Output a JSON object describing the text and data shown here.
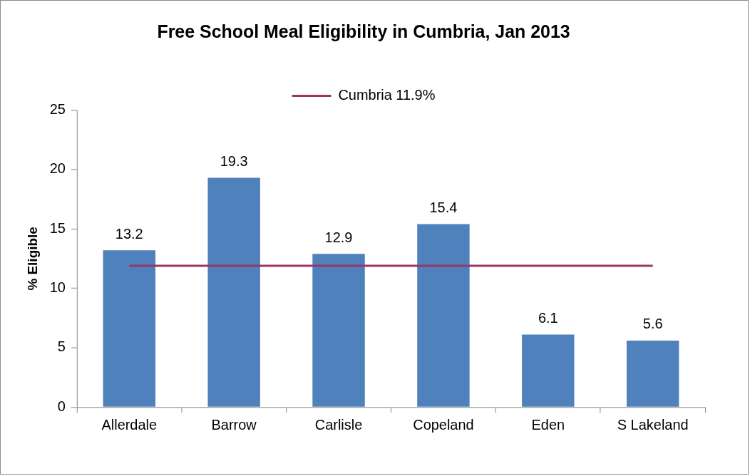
{
  "chart_data": {
    "type": "bar",
    "title": "Free School Meal Eligibility in Cumbria, Jan 2013",
    "ylabel": "% Eligible",
    "categories": [
      "Allerdale",
      "Barrow",
      "Carlisle",
      "Copeland",
      "Eden",
      "S Lakeland"
    ],
    "series": [
      {
        "color": "#4f81bd",
        "values": [
          13.2,
          19.3,
          12.9,
          15.4,
          6.1,
          5.6
        ],
        "value_labels": [
          "13.2",
          "19.3",
          "12.9",
          "15.4",
          "6.1",
          "5.6"
        ]
      },
      {
        "type": "line",
        "name": "Cumbria 11.9%",
        "color": "#9b3567",
        "values": [
          11.9,
          11.9,
          11.9,
          11.9,
          11.9,
          11.9
        ]
      }
    ],
    "ylim": [
      0,
      25
    ],
    "yticks": [
      0,
      5,
      10,
      15,
      20,
      25
    ],
    "grid": false,
    "legend": "top",
    "marker": "none"
  }
}
